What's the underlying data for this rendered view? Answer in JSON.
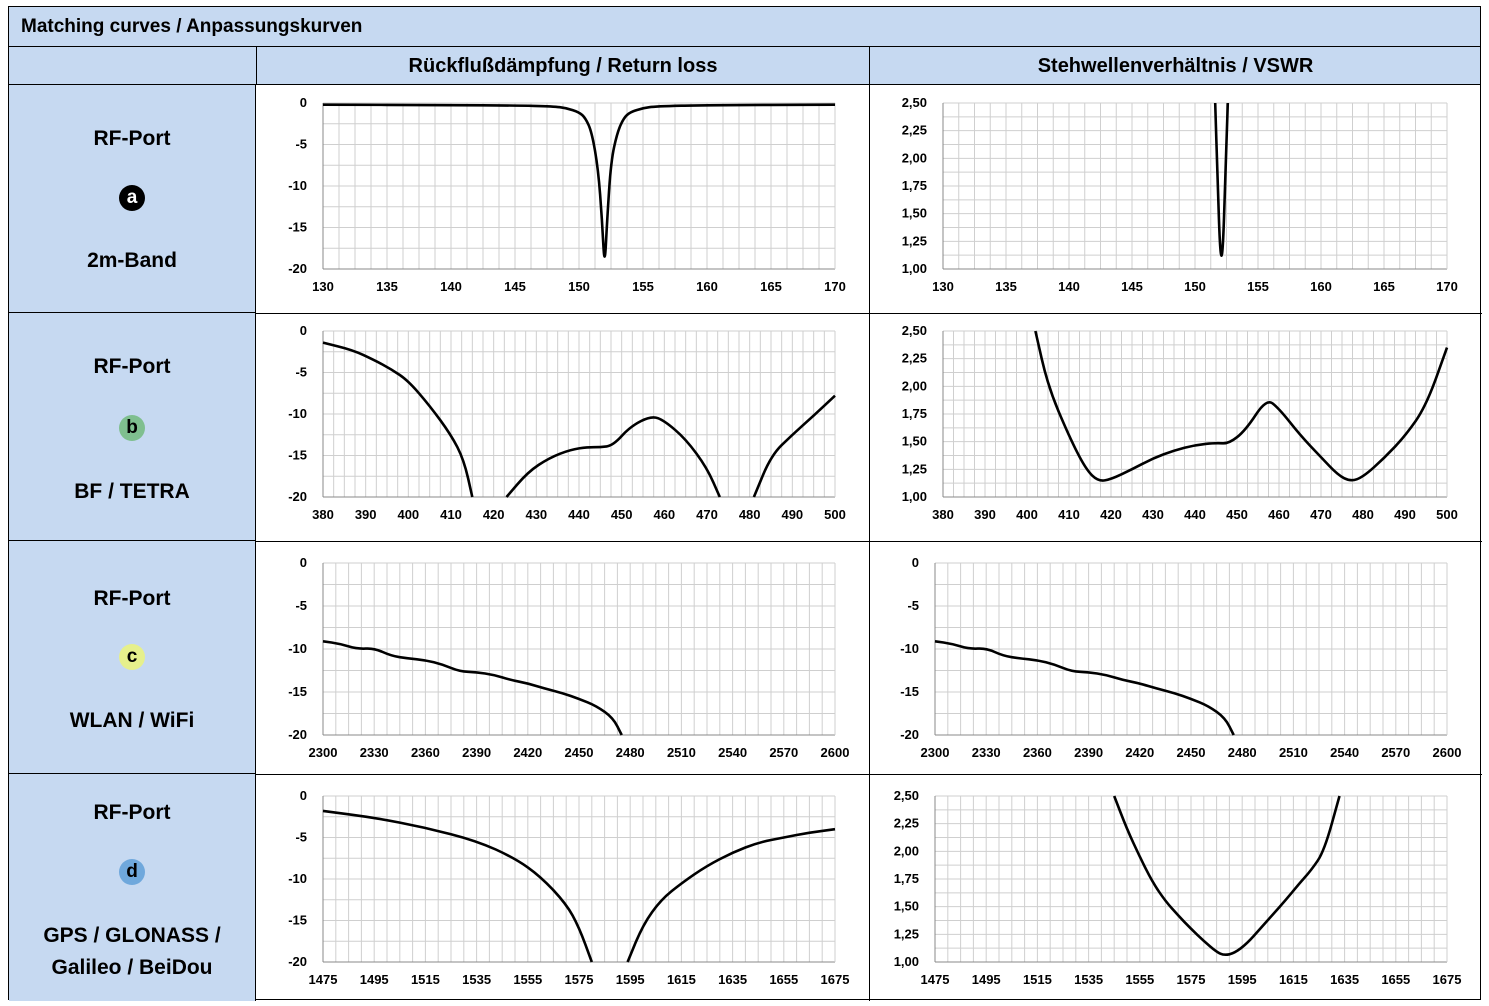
{
  "title": "Matching curves / Anpassungskurven",
  "headers": {
    "return_loss": "Rückflußdämpfung / Return loss",
    "vswr": "Stehwellenverhältnis / VSWR"
  },
  "rows": [
    {
      "title": "RF-Port",
      "badge": "a",
      "badge_color": "#000000",
      "badge_text_color": "#ffffff",
      "sub": "2m-Band"
    },
    {
      "title": "RF-Port",
      "badge": "b",
      "badge_color": "#7fbf8f",
      "badge_text_color": "#000000",
      "sub": "BF / TETRA"
    },
    {
      "title": "RF-Port",
      "badge": "c",
      "badge_color": "#e6f08c",
      "badge_text_color": "#000000",
      "sub": "WLAN / WiFi"
    },
    {
      "title": "RF-Port",
      "badge": "d",
      "badge_color": "#6fa8dc",
      "badge_text_color": "#000000",
      "sub": "GPS / GLONASS / Galileo / BeiDou"
    }
  ],
  "chart_data": [
    {
      "id": "rl-a",
      "type": "line",
      "xlim": [
        130,
        170
      ],
      "ylim": [
        -20,
        0
      ],
      "xticks": [
        "130",
        "135",
        "140",
        "145",
        "150",
        "155",
        "160",
        "165",
        "170"
      ],
      "yticks": [
        "0",
        "-5",
        "-10",
        "-15",
        "-20"
      ],
      "x": [
        130,
        140,
        145,
        148,
        149,
        150,
        150.5,
        151,
        151.5,
        151.8,
        152,
        152.2,
        152.5,
        153,
        153.5,
        154,
        155,
        156,
        160,
        170
      ],
      "y": [
        -0.2,
        -0.25,
        -0.3,
        -0.4,
        -0.6,
        -1.1,
        -1.8,
        -3.5,
        -8,
        -14,
        -20,
        -14,
        -7,
        -3.5,
        -1.8,
        -1.1,
        -0.6,
        -0.4,
        -0.25,
        -0.2
      ]
    },
    {
      "id": "vswr-a",
      "type": "line",
      "xlim": [
        130,
        170
      ],
      "ylim": [
        1.0,
        2.5
      ],
      "xticks": [
        "130",
        "135",
        "140",
        "145",
        "150",
        "155",
        "160",
        "165",
        "170"
      ],
      "yticks": [
        "2,50",
        "2,25",
        "2,00",
        "1,75",
        "1,50",
        "1,25",
        "1,00"
      ],
      "x": [
        151.6,
        151.8,
        152.0,
        152.2,
        152.4,
        152.6
      ],
      "y": [
        2.5,
        1.8,
        1.12,
        1.12,
        1.8,
        2.5
      ]
    },
    {
      "id": "rl-b",
      "type": "line",
      "xlim": [
        380,
        500
      ],
      "ylim": [
        -20,
        0
      ],
      "xticks": [
        "380",
        "390",
        "400",
        "410",
        "420",
        "430",
        "440",
        "450",
        "460",
        "470",
        "480",
        "490",
        "500"
      ],
      "yticks": [
        "0",
        "-5",
        "-10",
        "-15",
        "-20"
      ],
      "x": [
        380,
        387,
        392,
        396,
        400,
        405,
        410,
        413,
        415,
        null,
        423,
        428,
        433,
        438,
        442,
        445,
        448,
        452,
        457,
        460,
        465,
        470,
        473,
        null,
        481,
        485,
        490,
        495,
        500
      ],
      "y": [
        -1.4,
        -2.3,
        -3.5,
        -4.6,
        -6.0,
        -9.0,
        -12.5,
        -15.5,
        -20,
        null,
        -20,
        -17,
        -15.3,
        -14.3,
        -14.0,
        -14.0,
        -13.8,
        -11.5,
        -10.2,
        -10.8,
        -13.0,
        -16.5,
        -20,
        null,
        -20,
        -15,
        -12.5,
        -10.2,
        -7.8
      ]
    },
    {
      "id": "vswr-b",
      "type": "line",
      "xlim": [
        380,
        500
      ],
      "ylim": [
        1.0,
        2.5
      ],
      "xticks": [
        "380",
        "390",
        "400",
        "410",
        "420",
        "430",
        "440",
        "450",
        "460",
        "470",
        "480",
        "490",
        "500"
      ],
      "yticks": [
        "2,50",
        "2,25",
        "2,00",
        "1,75",
        "1,50",
        "1,25",
        "1,00"
      ],
      "x": [
        402,
        405,
        410,
        414,
        417,
        420,
        425,
        430,
        435,
        440,
        445,
        448,
        452,
        457,
        460,
        465,
        470,
        474,
        477,
        480,
        485,
        490,
        495,
        500
      ],
      "y": [
        2.5,
        2.0,
        1.55,
        1.25,
        1.14,
        1.16,
        1.25,
        1.35,
        1.42,
        1.47,
        1.49,
        1.48,
        1.6,
        1.89,
        1.8,
        1.56,
        1.36,
        1.2,
        1.14,
        1.18,
        1.35,
        1.55,
        1.82,
        2.35
      ]
    },
    {
      "id": "rl-c",
      "type": "line",
      "xlim": [
        2300,
        2600
      ],
      "ylim": [
        -20,
        0
      ],
      "xticks": [
        "2300",
        "2330",
        "2360",
        "2390",
        "2420",
        "2450",
        "2480",
        "2510",
        "2540",
        "2570",
        "2600"
      ],
      "yticks": [
        "0",
        "-5",
        "-10",
        "-15",
        "-20"
      ],
      "x": [
        2300,
        2310,
        2320,
        2330,
        2340,
        2350,
        2360,
        2370,
        2380,
        2390,
        2400,
        2410,
        2420,
        2430,
        2440,
        2450,
        2460,
        2470,
        2475
      ],
      "y": [
        -9.1,
        -9.4,
        -10.0,
        -9.9,
        -10.8,
        -11.1,
        -11.3,
        -11.8,
        -12.6,
        -12.7,
        -13.0,
        -13.6,
        -14.0,
        -14.6,
        -15.1,
        -15.8,
        -16.6,
        -18.0,
        -20
      ]
    },
    {
      "id": "vswr-c",
      "type": "line",
      "xlim": [
        2300,
        2600
      ],
      "ylim": [
        -20,
        0
      ],
      "xticks": [
        "2300",
        "2330",
        "2360",
        "2390",
        "2420",
        "2450",
        "2480",
        "2510",
        "2540",
        "2570",
        "2600"
      ],
      "yticks": [
        "0",
        "-5",
        "-10",
        "-15",
        "-20"
      ],
      "x": [
        2300,
        2310,
        2320,
        2330,
        2340,
        2350,
        2360,
        2370,
        2380,
        2390,
        2400,
        2410,
        2420,
        2430,
        2440,
        2450,
        2460,
        2470,
        2475
      ],
      "y": [
        -9.1,
        -9.4,
        -10.0,
        -9.9,
        -10.8,
        -11.1,
        -11.3,
        -11.8,
        -12.6,
        -12.7,
        -13.0,
        -13.6,
        -14.0,
        -14.6,
        -15.1,
        -15.8,
        -16.6,
        -18.0,
        -20
      ]
    },
    {
      "id": "rl-d",
      "type": "line",
      "xlim": [
        1475,
        1675
      ],
      "ylim": [
        -20,
        0
      ],
      "xticks": [
        "1475",
        "1495",
        "1515",
        "1535",
        "1555",
        "1575",
        "1595",
        "1615",
        "1635",
        "1655",
        "1675"
      ],
      "yticks": [
        "0",
        "-5",
        "-10",
        "-15",
        "-20"
      ],
      "x": [
        1475,
        1495,
        1515,
        1535,
        1550,
        1560,
        1570,
        1575,
        1580,
        null,
        1594,
        1600,
        1607,
        1615,
        1625,
        1635,
        1645,
        1655,
        1665,
        1675
      ],
      "y": [
        -1.8,
        -2.6,
        -3.8,
        -5.4,
        -7.5,
        -9.7,
        -13.0,
        -15.8,
        -20,
        null,
        -20,
        -15.5,
        -12.5,
        -10.5,
        -8.4,
        -6.8,
        -5.6,
        -5.0,
        -4.4,
        -4.0
      ]
    },
    {
      "id": "vswr-d",
      "type": "line",
      "xlim": [
        1475,
        1675
      ],
      "ylim": [
        1.0,
        2.5
      ],
      "xticks": [
        "1475",
        "1495",
        "1515",
        "1535",
        "1555",
        "1575",
        "1595",
        "1615",
        "1635",
        "1655",
        "1675"
      ],
      "yticks": [
        "2,50",
        "2,25",
        "2,00",
        "1,75",
        "1,50",
        "1,25",
        "1,00"
      ],
      "x": [
        1545,
        1550,
        1555,
        1560,
        1565,
        1570,
        1575,
        1580,
        1585,
        1588,
        1592,
        1597,
        1602,
        1607,
        1612,
        1617,
        1622,
        1627,
        1633
      ],
      "y": [
        2.5,
        2.2,
        1.95,
        1.72,
        1.55,
        1.42,
        1.3,
        1.19,
        1.09,
        1.06,
        1.08,
        1.17,
        1.3,
        1.43,
        1.56,
        1.7,
        1.83,
        2.0,
        2.5
      ]
    }
  ]
}
